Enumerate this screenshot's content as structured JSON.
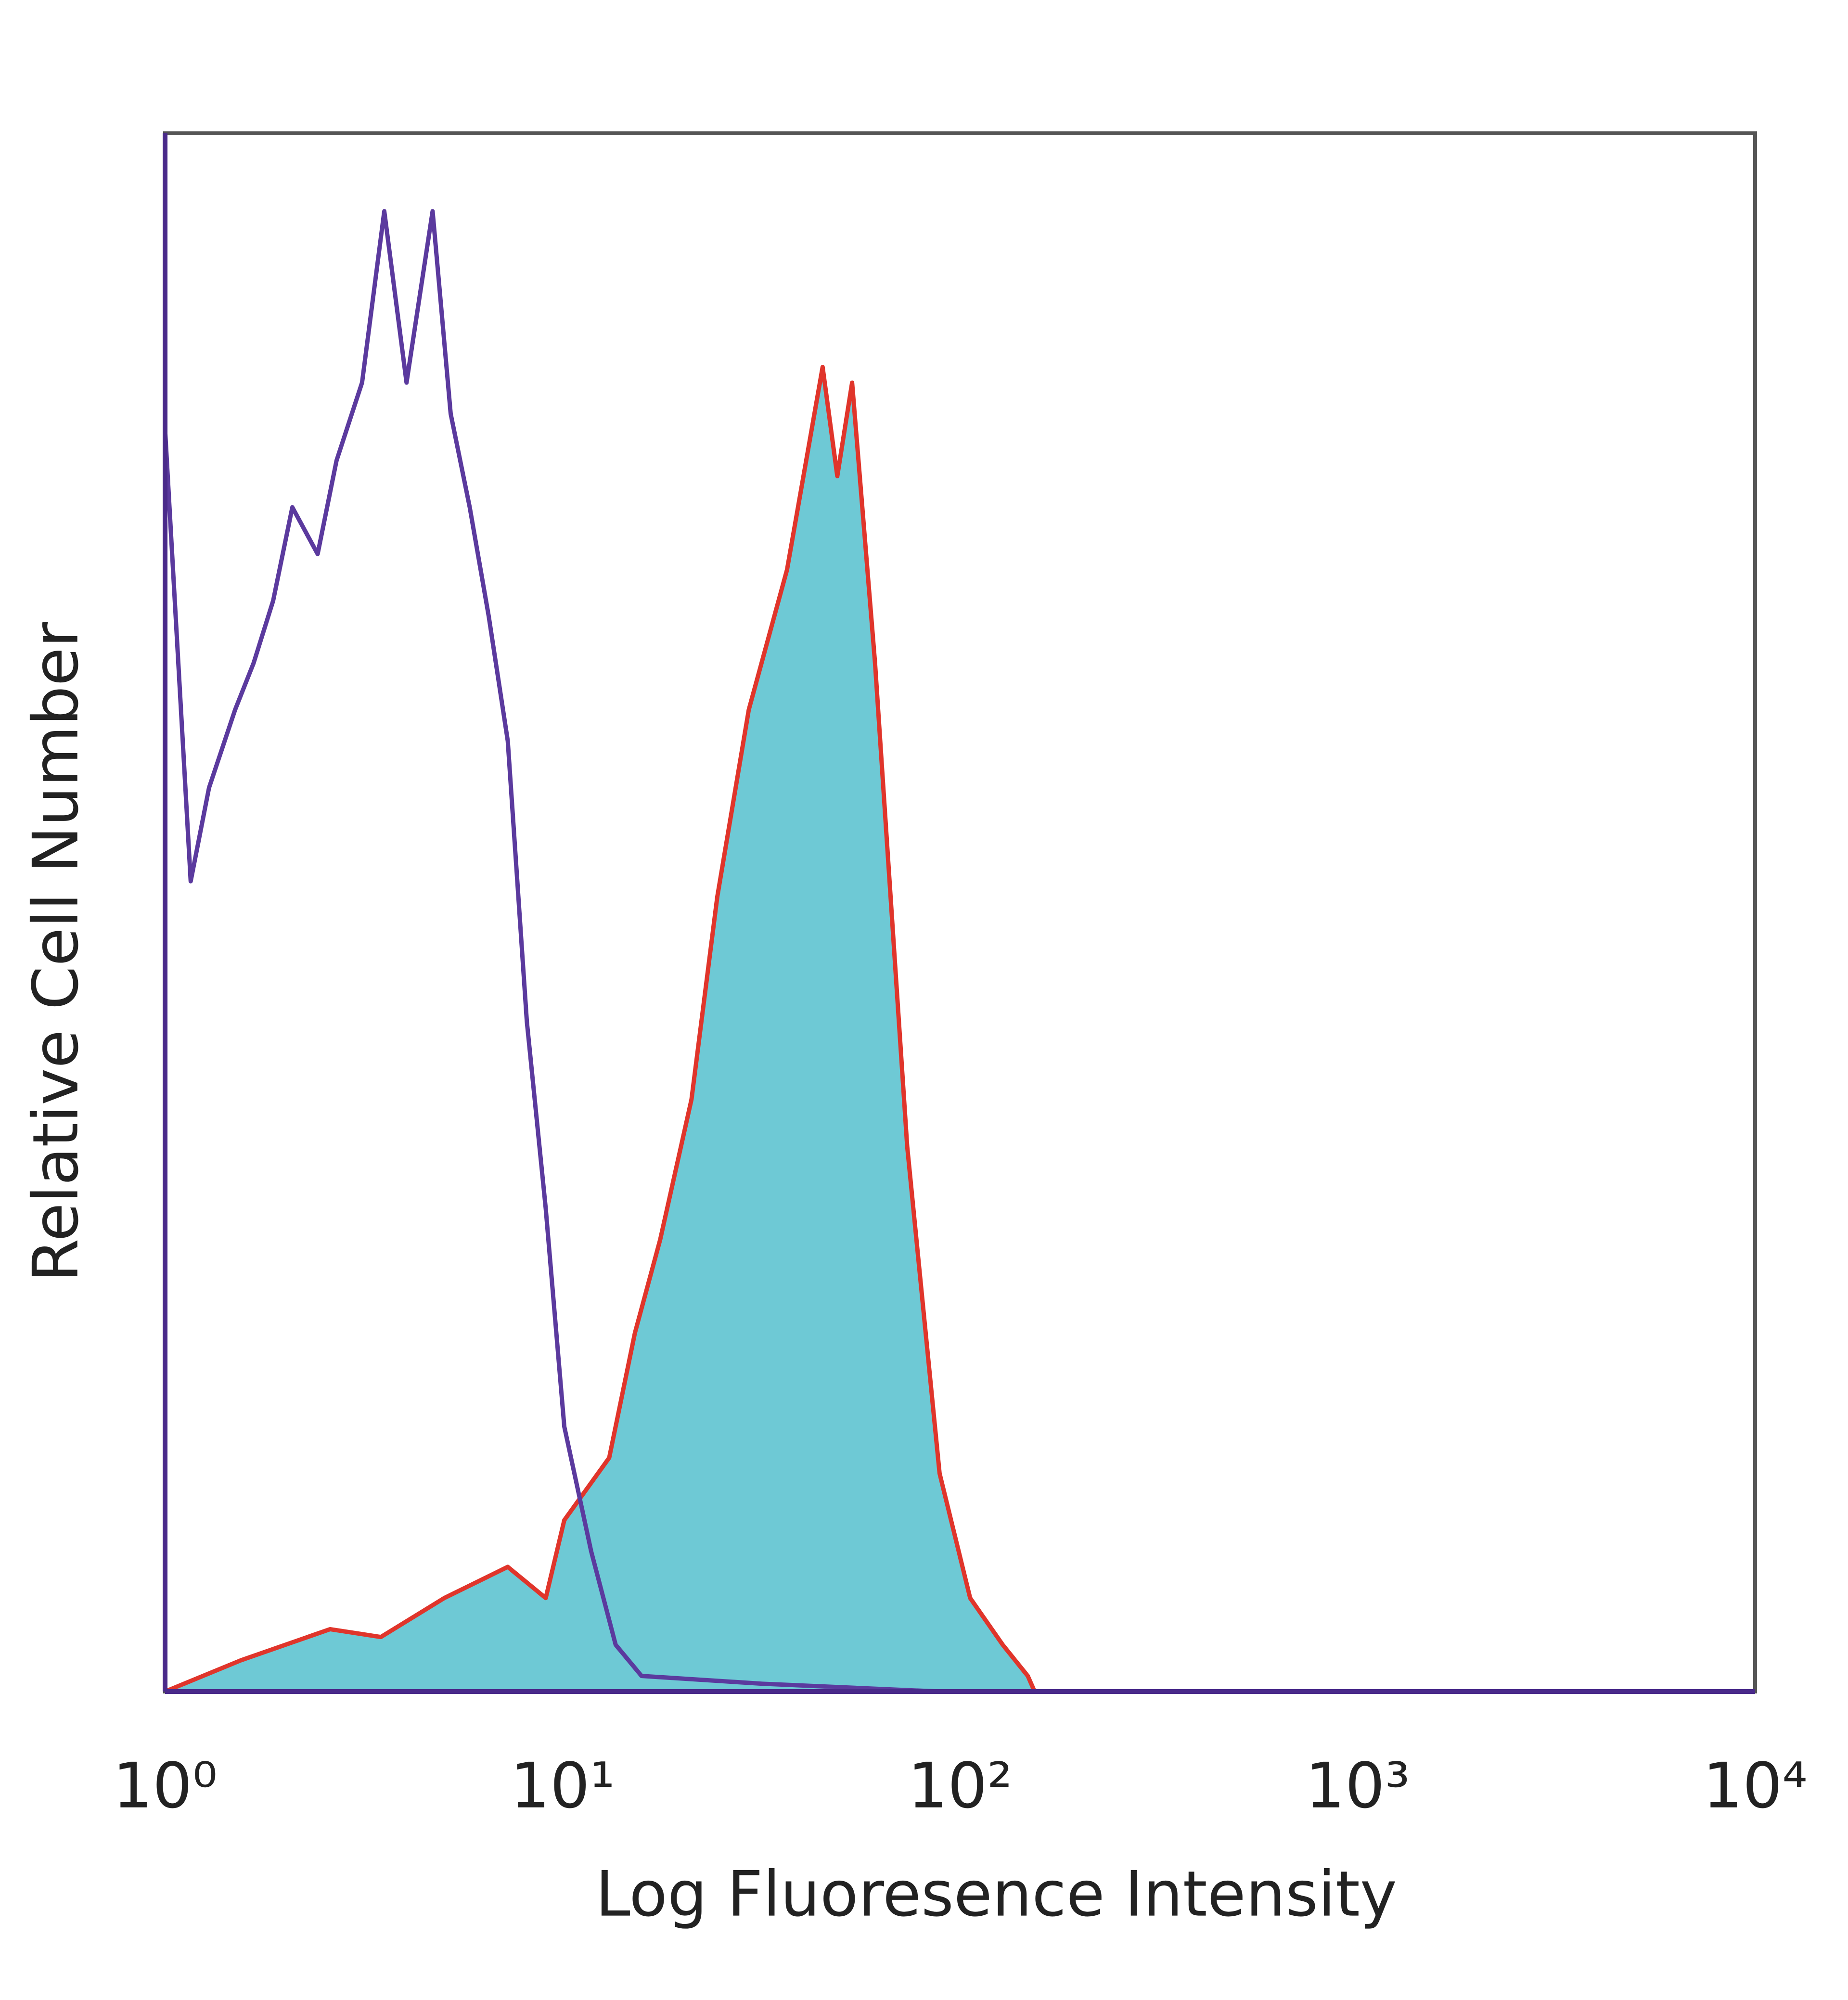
{
  "chart_data": {
    "type": "line",
    "x_label": "Log Fluoresence Intensity",
    "y_label": "Relative Cell Number",
    "xscale": "log",
    "xlim": [
      1,
      10000
    ],
    "xticks": [
      {
        "value": 1,
        "label": "10⁰"
      },
      {
        "value": 10,
        "label": "10¹"
      },
      {
        "value": 100,
        "label": "10²"
      },
      {
        "value": 1000,
        "label": "10³"
      },
      {
        "value": 10000,
        "label": "10⁴"
      }
    ],
    "ylim": [
      0,
      100
    ],
    "series": [
      {
        "color": "#5b3a9e",
        "fill": null,
        "x": [
          1,
          1.16,
          1.29,
          1.5,
          1.67,
          1.87,
          2.09,
          2.42,
          2.7,
          3.13,
          3.56,
          4.05,
          4.71,
          5.23,
          5.84,
          6.52,
          7.28,
          8.13,
          9.07,
          10.1,
          11.8,
          13.6,
          15.8,
          31.8,
          88.8,
          10000
        ],
        "values": [
          81,
          52,
          58,
          63,
          66,
          70,
          76,
          73,
          79,
          84,
          95,
          84,
          95,
          82,
          76,
          69,
          61,
          43,
          31,
          17,
          9,
          3,
          1,
          0.5,
          0,
          0
        ]
      },
      {
        "color": "#e0352b",
        "fill": "#6ec9d5",
        "x": [
          1,
          1.55,
          2.6,
          3.49,
          5.04,
          7.28,
          9.07,
          10.1,
          13.1,
          15.2,
          17.6,
          21.1,
          24.5,
          29.4,
          36.7,
          45.1,
          49.1,
          53.5,
          61.1,
          73.6,
          88.8,
          106,
          128,
          148,
          154
        ],
        "values": [
          0,
          2,
          4,
          3.5,
          6,
          8,
          6,
          11,
          15,
          23,
          29,
          38,
          51,
          63,
          72,
          85,
          78,
          84,
          66,
          35,
          14,
          6,
          3,
          1,
          0
        ]
      }
    ]
  }
}
